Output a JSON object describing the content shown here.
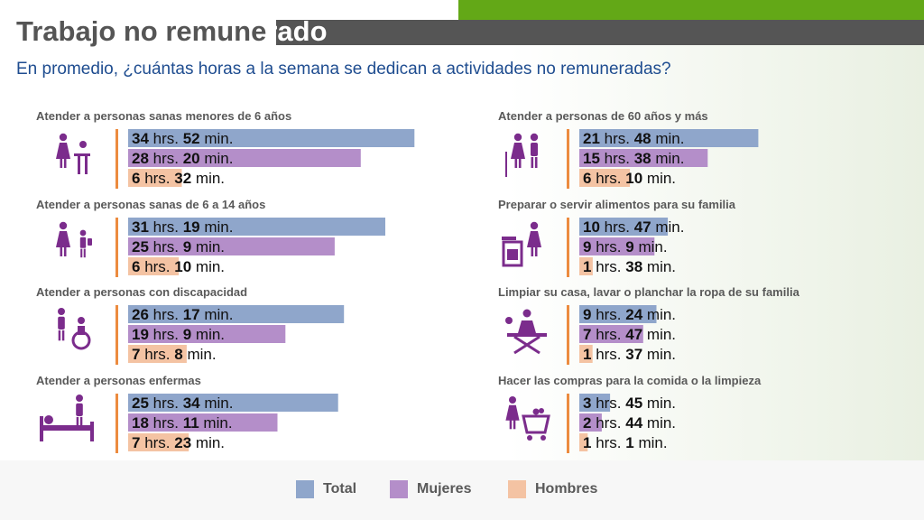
{
  "title_part1": "Trabajo no remune",
  "title_part2": "rado",
  "subtitle": "En promedio, ¿cuántas horas a la semana se dedican a actividades no remuneradas?",
  "colors": {
    "total": "#8fa6cb",
    "mujeres": "#b48ec9",
    "hombres": "#f4c3a3",
    "icon": "#7b2c8c",
    "divider": "#ec8b3f",
    "label": "#595959"
  },
  "legend": [
    {
      "key": "total",
      "label": "Total"
    },
    {
      "key": "mujeres",
      "label": "Mujeres"
    },
    {
      "key": "hombres",
      "label": "Hombres"
    }
  ],
  "chart_data": {
    "type": "bar",
    "title": "Trabajo no remunerado",
    "subtitle": "En promedio, ¿cuántas horas a la semana se dedican a actividades no remuneradas?",
    "unit": "horas a la semana",
    "series_names": [
      "Total",
      "Mujeres",
      "Hombres"
    ],
    "categories": [
      {
        "label": "Atender a personas sanas menores de 6 años",
        "icon": "caregiver-child-icon",
        "values": [
          {
            "h": 34,
            "m": 52
          },
          {
            "h": 28,
            "m": 20
          },
          {
            "h": 6,
            "m": 32
          }
        ]
      },
      {
        "label": "Atender a personas sanas de 6 a 14 años",
        "icon": "caregiver-kid-icon",
        "values": [
          {
            "h": 31,
            "m": 19
          },
          {
            "h": 25,
            "m": 9
          },
          {
            "h": 6,
            "m": 10
          }
        ]
      },
      {
        "label": "Atender a personas con discapacidad",
        "icon": "wheelchair-icon",
        "values": [
          {
            "h": 26,
            "m": 17
          },
          {
            "h": 19,
            "m": 9
          },
          {
            "h": 7,
            "m": 8
          }
        ]
      },
      {
        "label": "Atender a personas enfermas",
        "icon": "sick-bed-icon",
        "values": [
          {
            "h": 25,
            "m": 34
          },
          {
            "h": 18,
            "m": 11
          },
          {
            "h": 7,
            "m": 23
          }
        ]
      },
      {
        "label": "Atender a personas de 60 años y más",
        "icon": "elderly-icon",
        "values": [
          {
            "h": 21,
            "m": 48
          },
          {
            "h": 15,
            "m": 38
          },
          {
            "h": 6,
            "m": 10
          }
        ]
      },
      {
        "label": "Preparar o servir alimentos para su familia",
        "icon": "cooking-icon",
        "values": [
          {
            "h": 10,
            "m": 47
          },
          {
            "h": 9,
            "m": 9
          },
          {
            "h": 1,
            "m": 38
          }
        ]
      },
      {
        "label": "Limpiar su casa, lavar o planchar la ropa de su familia",
        "icon": "ironing-icon",
        "values": [
          {
            "h": 9,
            "m": 24
          },
          {
            "h": 7,
            "m": 47
          },
          {
            "h": 1,
            "m": 37
          }
        ]
      },
      {
        "label": "Hacer las compras para la comida o la limpieza",
        "icon": "shopping-cart-icon",
        "values": [
          {
            "h": 3,
            "m": 45
          },
          {
            "h": 2,
            "m": 44
          },
          {
            "h": 1,
            "m": 1
          }
        ]
      }
    ]
  }
}
